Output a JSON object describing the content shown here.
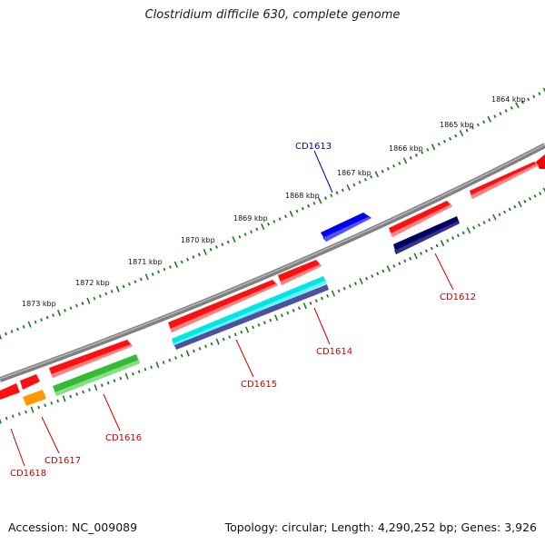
{
  "title": "Clostridium difficile 630, complete genome",
  "footer": {
    "accession": "Accession: NC_009089",
    "summary": "Topology: circular; Length: 4,290,252 bp; Genes: 3,926"
  },
  "colors": {
    "backbone": "#808080",
    "ticks": "#1f7a1f",
    "gene_label_red": "#cc0000",
    "gene_label_blue": "#0000cc",
    "feature_red": "#ff0000",
    "feature_cyan": "#00e5e5",
    "feature_slate": "#5050a0",
    "feature_navy": "#000066",
    "feature_green": "#33bb33",
    "feature_orange": "#ff9900",
    "feature_blue": "#0000ee"
  },
  "scale_labels": [
    "1864 kbp",
    "1865 kbp",
    "1866 kbp",
    "1867 kbp",
    "1868 kbp",
    "1869 kbp",
    "1870 kbp",
    "1871 kbp",
    "1872 kbp",
    "1873 kbp"
  ],
  "gene_labels": [
    "CD1613",
    "CD1612",
    "CD1614",
    "CD1615",
    "CD1616",
    "CD1617",
    "CD1618"
  ]
}
